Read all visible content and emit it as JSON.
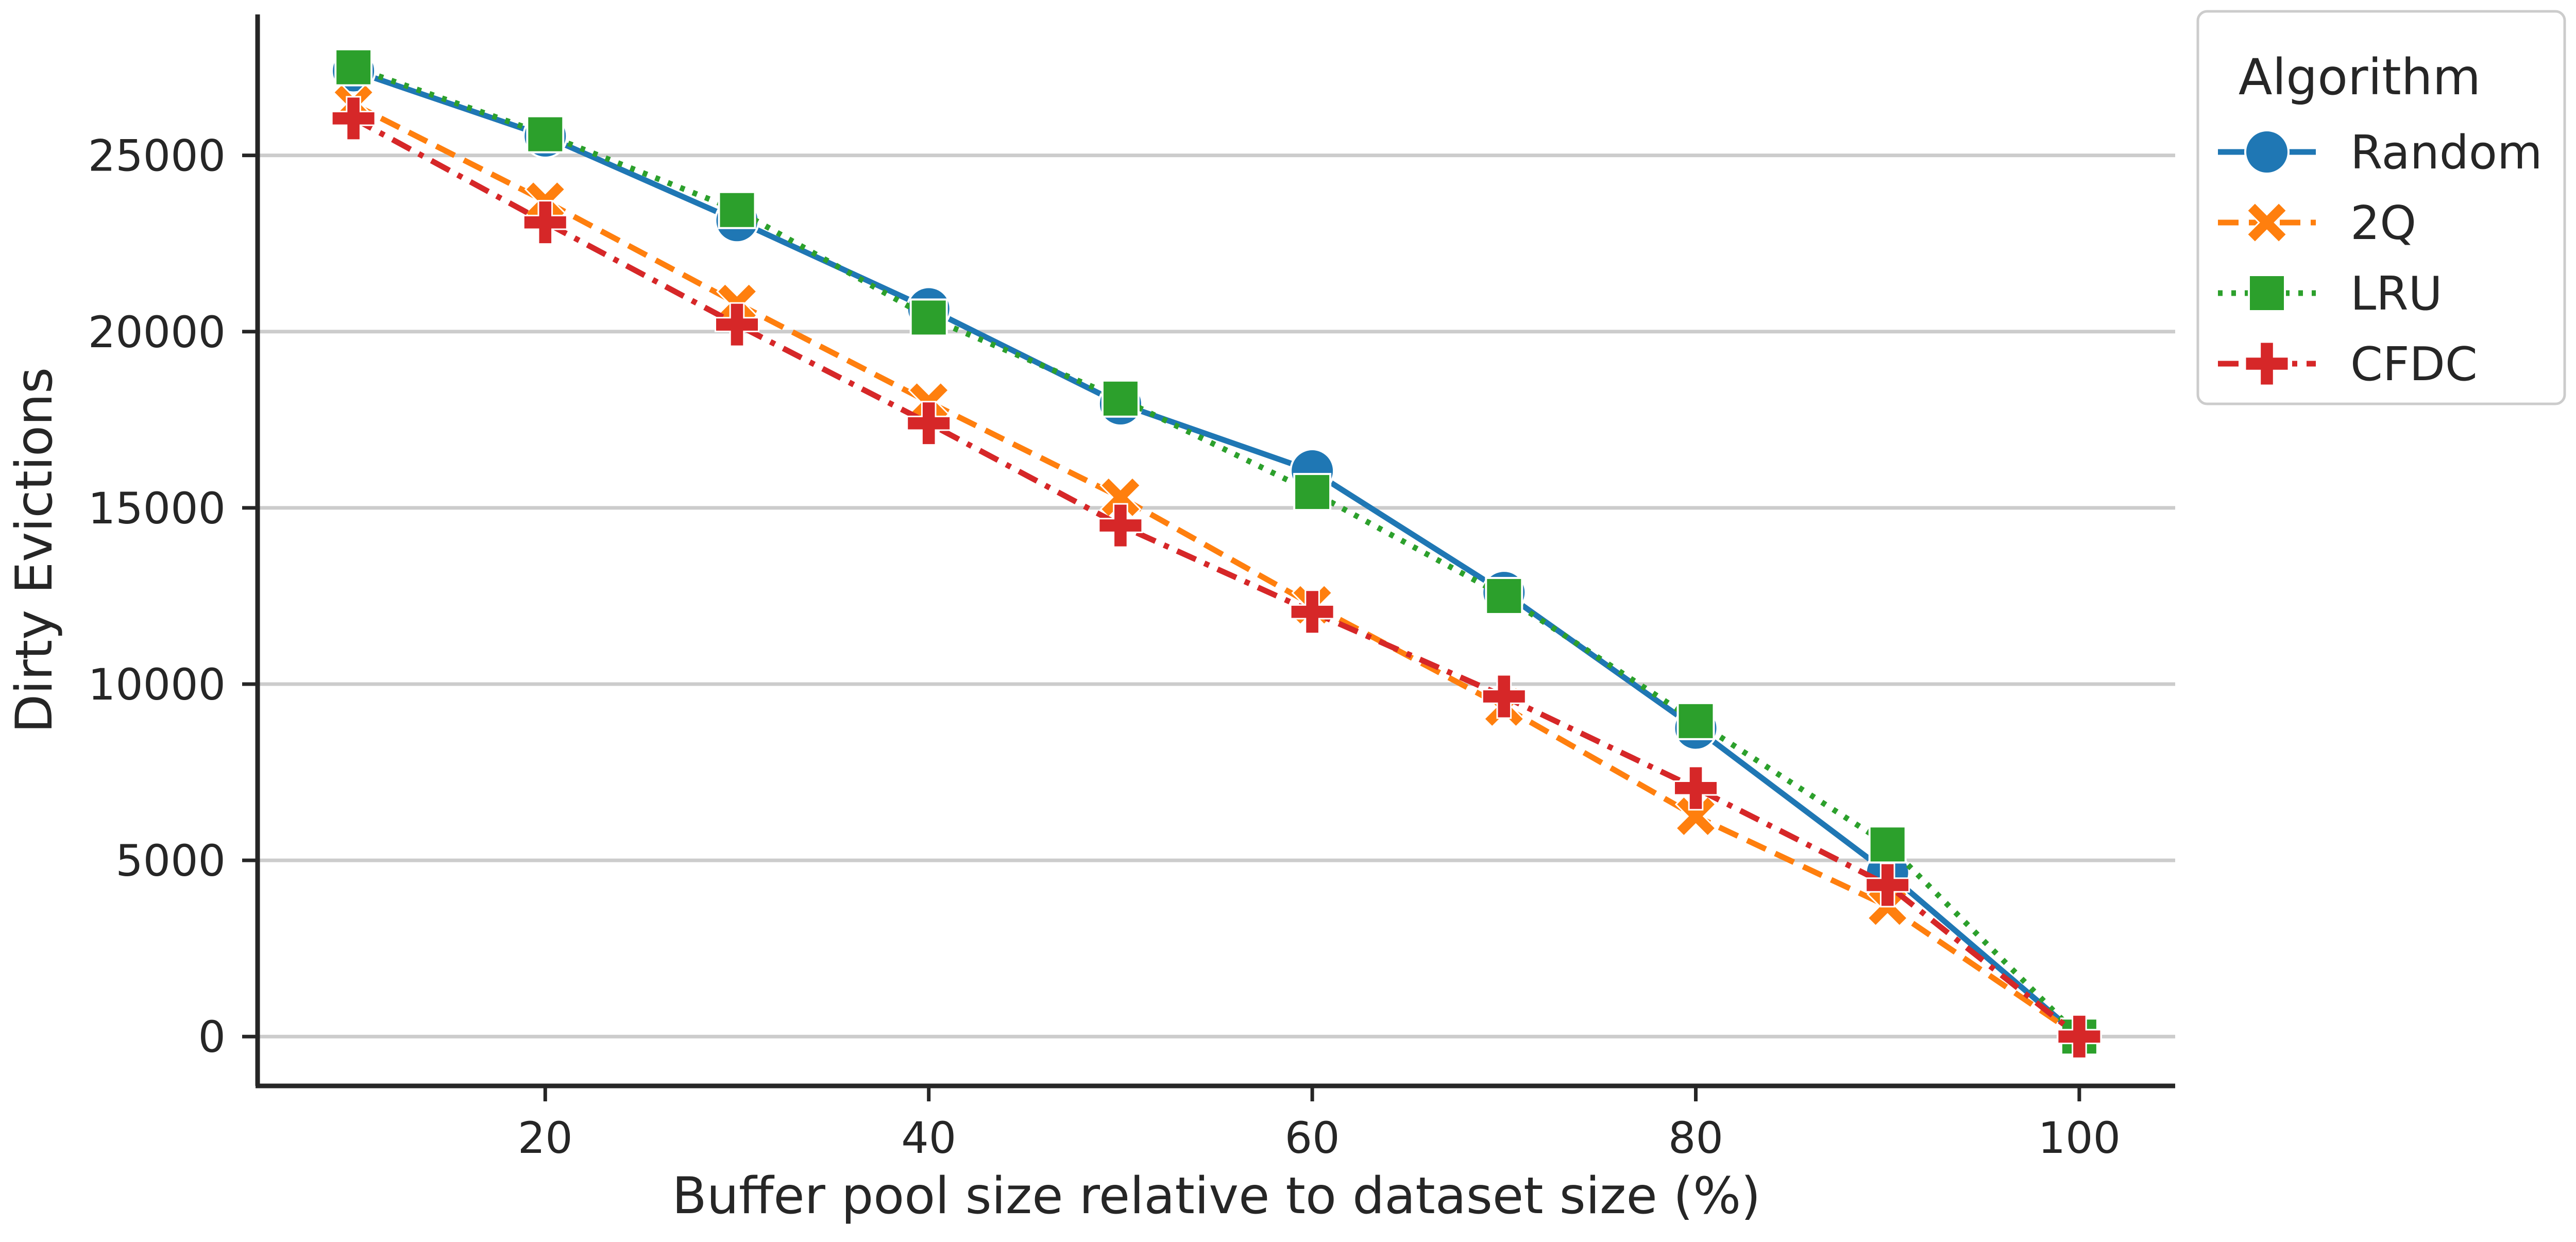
{
  "chart_data": {
    "type": "line",
    "title": "",
    "xlabel": "Buffer pool size relative to dataset size (%)",
    "ylabel": "Dirty Evictions",
    "x": [
      10,
      20,
      30,
      40,
      50,
      60,
      70,
      80,
      90,
      100
    ],
    "xlim": [
      5,
      105
    ],
    "ylim": [
      -1400,
      29000
    ],
    "xticks": [
      20,
      40,
      60,
      80,
      100
    ],
    "yticks": [
      0,
      5000,
      10000,
      15000,
      20000,
      25000
    ],
    "grid": "horizontal",
    "legend": {
      "title": "Algorithm",
      "placement": "outside-top-right"
    },
    "series": [
      {
        "name": "Random",
        "color": "#1f77b4",
        "line_style": "solid",
        "marker": "circle",
        "values": [
          27400,
          25550,
          23150,
          20650,
          17950,
          16050,
          12600,
          8750,
          4650,
          0
        ]
      },
      {
        "name": "2Q",
        "color": "#ff7f0e",
        "line_style": "dashed",
        "marker": "x",
        "values": [
          26450,
          23700,
          20800,
          18000,
          15300,
          12250,
          9350,
          6250,
          3700,
          0
        ]
      },
      {
        "name": "LRU",
        "color": "#2ca02c",
        "line_style": "dotted",
        "marker": "square",
        "values": [
          27500,
          25600,
          23450,
          20400,
          18100,
          15450,
          12500,
          8950,
          5450,
          0
        ]
      },
      {
        "name": "CFDC",
        "color": "#d62728",
        "line_style": "dashdot",
        "marker": "plus",
        "values": [
          26050,
          23100,
          20200,
          17400,
          14500,
          12050,
          9650,
          7050,
          4300,
          0
        ]
      }
    ]
  }
}
